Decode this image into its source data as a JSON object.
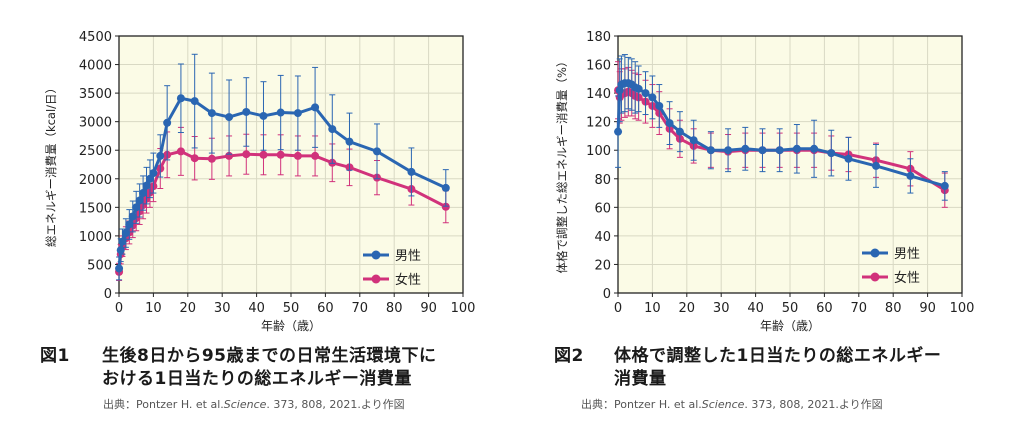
{
  "colors": {
    "male": "#2a66b2",
    "female": "#d1327b",
    "plot_bg": "#fbfbe6",
    "grid": "#d9d9c4",
    "axis": "#222222"
  },
  "figures": [
    {
      "number": "図1",
      "caption_lines": [
        "生後8日から95歳までの日常生活環境下に",
        "おける1日当たりの総エネルギー消費量"
      ],
      "source": {
        "prefix": "出典：Pontzer H. et al.",
        "journal": "Science",
        "suffix": ". 373, 808, 2021.より作図"
      }
    },
    {
      "number": "図2",
      "caption_lines": [
        "体格で調整した1日当たりの総エネルギー",
        "消費量"
      ],
      "source": {
        "prefix": "出典：Pontzer H. et al.",
        "journal": "Science",
        "suffix": ". 373, 808, 2021.より作図"
      }
    }
  ],
  "chart_data": [
    {
      "type": "line",
      "xlabel": "年齢（歳）",
      "ylabel": "総エネルギー消費量（kcal/日）",
      "xlim": [
        0,
        100
      ],
      "ylim": [
        0,
        4500
      ],
      "xticks": [
        0,
        10,
        20,
        30,
        40,
        50,
        60,
        70,
        80,
        90,
        100
      ],
      "yticks": [
        0,
        500,
        1000,
        1500,
        2000,
        2500,
        3000,
        3500,
        4000,
        4500
      ],
      "grid": true,
      "legend_position": "bottom-right",
      "series": [
        {
          "name": "男性",
          "color_key": "male",
          "x": [
            0.02,
            0.5,
            1,
            2,
            3,
            4,
            5,
            6,
            7,
            8,
            9,
            10,
            12,
            14,
            18,
            22,
            27,
            32,
            37,
            42,
            47,
            52,
            57,
            62,
            67,
            75,
            85,
            95
          ],
          "y": [
            430,
            750,
            900,
            1050,
            1200,
            1340,
            1500,
            1620,
            1750,
            1880,
            2000,
            2100,
            2400,
            2980,
            3410,
            3360,
            3150,
            3080,
            3170,
            3100,
            3160,
            3150,
            3250,
            2870,
            2650,
            2480,
            2120,
            1840
          ],
          "err": [
            200,
            200,
            220,
            250,
            260,
            270,
            280,
            290,
            300,
            320,
            330,
            350,
            370,
            650,
            600,
            820,
            700,
            650,
            600,
            600,
            650,
            650,
            700,
            600,
            500,
            480,
            420,
            320
          ]
        },
        {
          "name": "女性",
          "color_key": "female",
          "x": [
            0.02,
            0.5,
            1,
            2,
            3,
            4,
            5,
            6,
            7,
            8,
            9,
            10,
            12,
            14,
            18,
            22,
            27,
            32,
            37,
            42,
            47,
            52,
            57,
            62,
            67,
            75,
            85,
            95
          ],
          "y": [
            370,
            680,
            820,
            960,
            1060,
            1180,
            1310,
            1430,
            1540,
            1650,
            1760,
            1870,
            2180,
            2420,
            2480,
            2360,
            2350,
            2400,
            2430,
            2420,
            2420,
            2400,
            2400,
            2280,
            2200,
            2020,
            1820,
            1510
          ],
          "err": [
            150,
            170,
            180,
            200,
            200,
            210,
            220,
            230,
            240,
            250,
            260,
            270,
            350,
            400,
            420,
            380,
            360,
            350,
            350,
            350,
            350,
            350,
            350,
            330,
            320,
            300,
            280,
            280
          ]
        }
      ]
    },
    {
      "type": "line",
      "xlabel": "年齢（歳）",
      "ylabel": "体格で調整した総エネルギー消費量（%）",
      "xlim": [
        0,
        100
      ],
      "ylim": [
        0,
        180
      ],
      "xticks": [
        0,
        10,
        20,
        30,
        40,
        50,
        60,
        70,
        80,
        90,
        100
      ],
      "yticks": [
        0,
        20,
        40,
        60,
        80,
        100,
        120,
        140,
        160,
        180
      ],
      "grid": true,
      "legend_position": "bottom-right",
      "series": [
        {
          "name": "男性",
          "color_key": "male",
          "x": [
            0.02,
            0.5,
            1,
            2,
            3,
            4,
            5,
            6,
            8,
            10,
            12,
            15,
            18,
            22,
            27,
            32,
            37,
            42,
            47,
            52,
            57,
            62,
            67,
            75,
            85,
            95
          ],
          "y": [
            113,
            142,
            146,
            147,
            147,
            146,
            144,
            143,
            140,
            137,
            131,
            119,
            113,
            107,
            100,
            100,
            101,
            100,
            100,
            101,
            101,
            98,
            94,
            89,
            82,
            75
          ],
          "err": [
            25,
            22,
            20,
            20,
            18,
            18,
            18,
            16,
            15,
            15,
            15,
            15,
            14,
            14,
            13,
            15,
            15,
            15,
            15,
            17,
            20,
            16,
            15,
            15,
            12,
            10
          ]
        },
        {
          "name": "女性",
          "color_key": "female",
          "x": [
            0.02,
            0.5,
            1,
            2,
            3,
            4,
            5,
            6,
            8,
            10,
            12,
            15,
            18,
            22,
            27,
            32,
            37,
            42,
            47,
            52,
            57,
            62,
            67,
            75,
            85,
            95
          ],
          "y": [
            142,
            137,
            139,
            140,
            141,
            140,
            138,
            137,
            134,
            131,
            126,
            115,
            108,
            103,
            100,
            99,
            100,
            100,
            100,
            100,
            100,
            98,
            97,
            93,
            87,
            72
          ],
          "err": [
            20,
            18,
            18,
            17,
            17,
            16,
            16,
            16,
            15,
            15,
            15,
            14,
            13,
            12,
            12,
            12,
            12,
            12,
            12,
            12,
            12,
            12,
            12,
            12,
            12,
            12
          ]
        }
      ]
    }
  ]
}
